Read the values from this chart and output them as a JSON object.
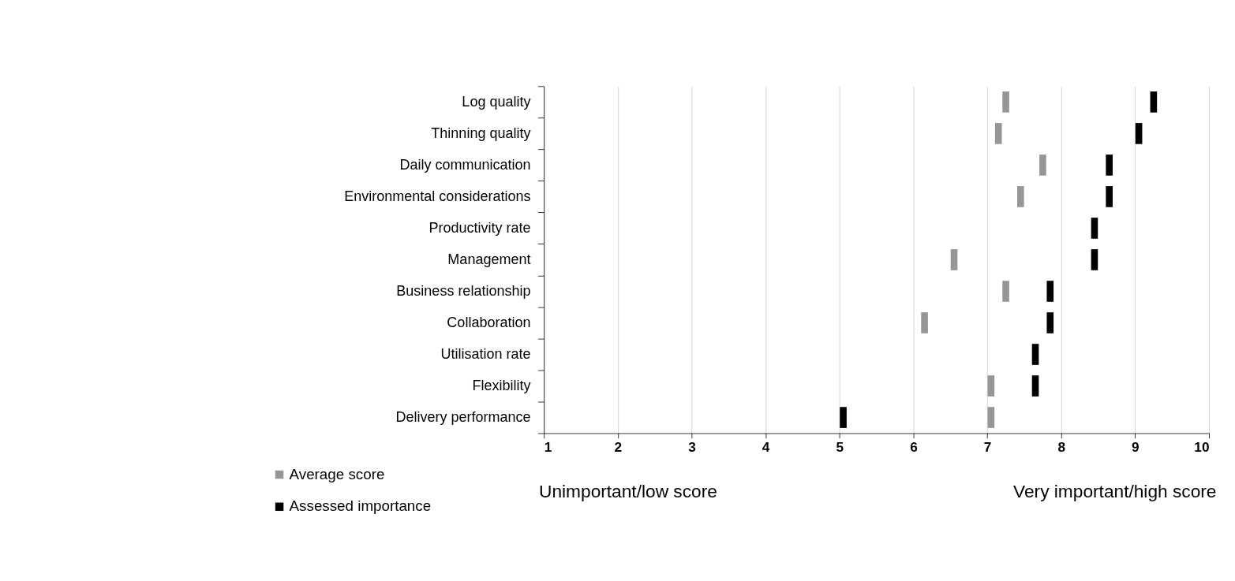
{
  "chart_data": {
    "type": "scatter",
    "categories": [
      "Log quality",
      "Thinning quality",
      "Daily communication",
      "Environmental considerations",
      "Productivity rate",
      "Management",
      "Business relationship",
      "Collaboration",
      "Utilisation rate",
      "Flexibility",
      "Delivery performance"
    ],
    "orientation": "horizontal",
    "series": [
      {
        "name": "Average score",
        "color": "#969696",
        "values": [
          7.25,
          7.15,
          7.75,
          7.45,
          null,
          6.55,
          7.25,
          6.15,
          null,
          7.05,
          7.05
        ]
      },
      {
        "name": "Assessed importance",
        "color": "#000000",
        "values": [
          9.25,
          9.05,
          8.65,
          8.65,
          8.45,
          8.45,
          7.85,
          7.85,
          7.65,
          7.65,
          5.05
        ]
      }
    ],
    "xlim": [
      1,
      10
    ],
    "xticks": [
      1,
      2,
      3,
      4,
      5,
      6,
      7,
      8,
      9,
      10
    ],
    "grid": "x",
    "legend": "bottom left",
    "annotations": [
      "Unimportant/low score",
      "Very important/high score"
    ]
  }
}
